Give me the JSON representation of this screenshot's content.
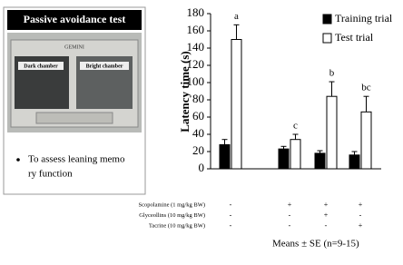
{
  "panel": {
    "title": "Passive avoidance test",
    "brand": "GEMINI",
    "dark_label": "Dark chamber",
    "bright_label": "Bright chamber",
    "bullet_lines": [
      "To assess leaning memo",
      "ry function"
    ]
  },
  "chart_data": {
    "type": "bar",
    "y_label": "Latency time (s)",
    "ylim": [
      0,
      180
    ],
    "yticks": [
      0,
      20,
      40,
      60,
      80,
      100,
      120,
      140,
      160,
      180
    ],
    "series": [
      {
        "name": "Training trial",
        "color": "#000000",
        "values": [
          28,
          23,
          18,
          16
        ],
        "errors": [
          6,
          3,
          3,
          4
        ]
      },
      {
        "name": "Test trial",
        "color": "#ffffff",
        "values": [
          150,
          34,
          84,
          66
        ],
        "errors": [
          17,
          6,
          17,
          18
        ],
        "value_labels": [
          "a",
          "c",
          "b",
          "bc"
        ]
      }
    ],
    "treatments": [
      {
        "name": "Scopolamine (1 mg/kg BW)",
        "marks": [
          "-",
          "+",
          "+",
          "+"
        ]
      },
      {
        "name": "Glyceollins (10 mg/kg BW)",
        "marks": [
          "-",
          "-",
          "+",
          "-"
        ]
      },
      {
        "name": "Tacrine (10 mg/kg BW)",
        "marks": [
          "-",
          "-",
          "-",
          "+"
        ]
      }
    ],
    "caption": "Means ± SE (n=9-15)"
  }
}
